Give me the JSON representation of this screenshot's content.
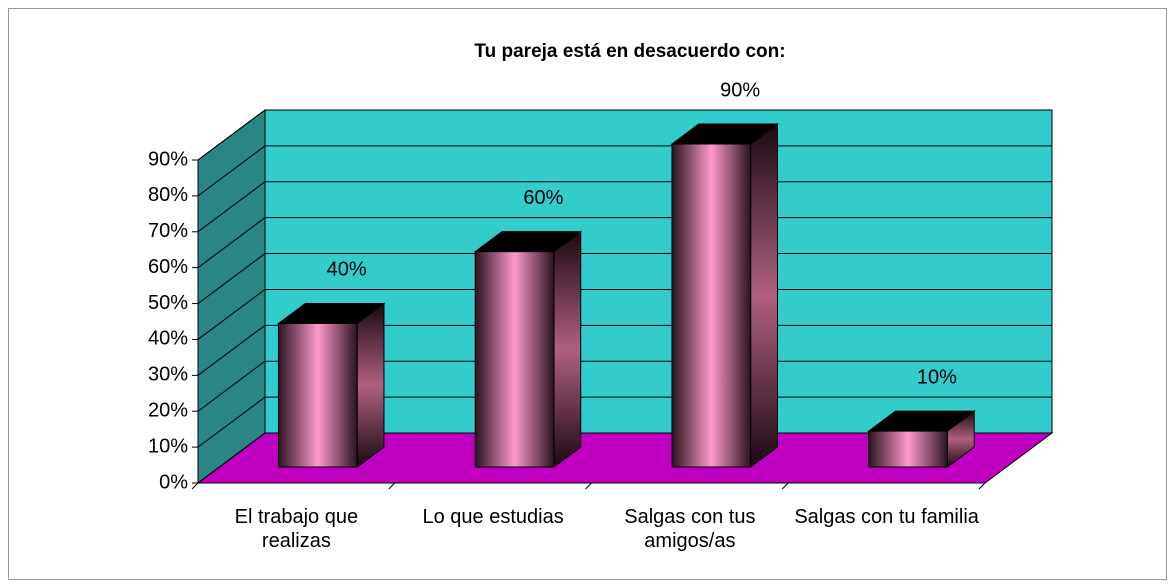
{
  "chart_data": {
    "type": "bar3d",
    "title": "Tu pareja está en desacuerdo con:",
    "categories": [
      "El trabajo que realizas",
      "Lo que estudias",
      "Salgas con tus amigos/as",
      "Salgas con tu familia"
    ],
    "values": [
      40,
      60,
      90,
      10
    ],
    "value_labels": [
      "40%",
      "60%",
      "90%",
      "10%"
    ],
    "ylim": [
      0,
      90
    ],
    "yticks": [
      {
        "value": 0,
        "label": "0%"
      },
      {
        "value": 10,
        "label": "10%"
      },
      {
        "value": 20,
        "label": "20%"
      },
      {
        "value": 30,
        "label": "30%"
      },
      {
        "value": 40,
        "label": "40%"
      },
      {
        "value": 50,
        "label": "50%"
      },
      {
        "value": 60,
        "label": "60%"
      },
      {
        "value": 70,
        "label": "70%"
      },
      {
        "value": 80,
        "label": "80%"
      },
      {
        "value": 90,
        "label": "90%"
      }
    ],
    "grid": true,
    "wall_color": "#33cccc",
    "side_wall_color": "#2a8585",
    "floor_color": "#c000c0",
    "color": "#ff99cc"
  }
}
